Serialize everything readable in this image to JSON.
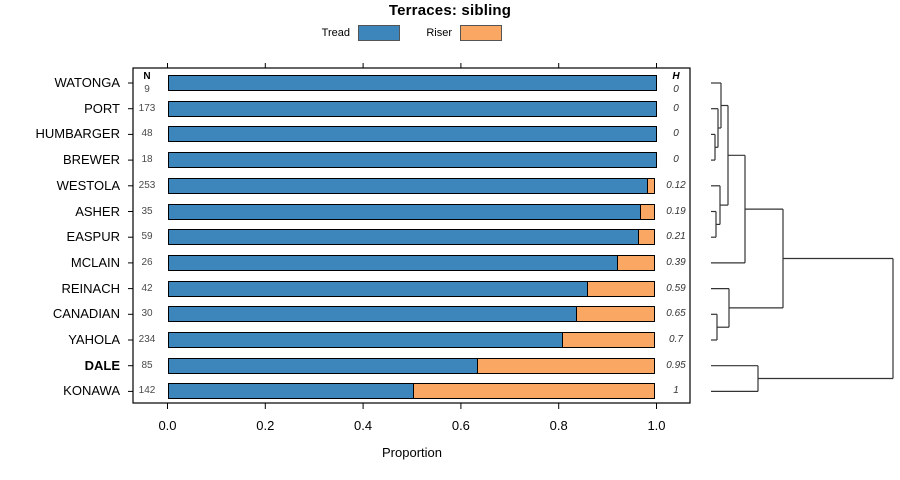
{
  "title": "Terraces: sibling",
  "legend": {
    "items": [
      {
        "label": "Tread",
        "color": "#3c86bc"
      },
      {
        "label": "Riser",
        "color": "#faa763"
      }
    ]
  },
  "table": {
    "n_header": "N",
    "h_header": "H"
  },
  "rows": [
    {
      "name": "WATONGA",
      "n": "9",
      "h": "0",
      "tread": 1.0,
      "bold": false
    },
    {
      "name": "PORT",
      "n": "173",
      "h": "0",
      "tread": 1.0,
      "bold": false
    },
    {
      "name": "HUMBARGER",
      "n": "48",
      "h": "0",
      "tread": 1.0,
      "bold": false
    },
    {
      "name": "BREWER",
      "n": "18",
      "h": "0",
      "tread": 1.0,
      "bold": false
    },
    {
      "name": "WESTOLA",
      "n": "253",
      "h": "0.12",
      "tread": 0.983,
      "bold": false
    },
    {
      "name": "ASHER",
      "n": "35",
      "h": "0.19",
      "tread": 0.97,
      "bold": false
    },
    {
      "name": "EASPUR",
      "n": "59",
      "h": "0.21",
      "tread": 0.965,
      "bold": false
    },
    {
      "name": "MCLAIN",
      "n": "26",
      "h": "0.39",
      "tread": 0.923,
      "bold": false
    },
    {
      "name": "REINACH",
      "n": "42",
      "h": "0.59",
      "tread": 0.86,
      "bold": false
    },
    {
      "name": "CANADIAN",
      "n": "30",
      "h": "0.65",
      "tread": 0.838,
      "bold": false
    },
    {
      "name": "YAHOLA",
      "n": "234",
      "h": "0.7",
      "tread": 0.81,
      "bold": false
    },
    {
      "name": "DALE",
      "n": "85",
      "h": "0.95",
      "tread": 0.635,
      "bold": true
    },
    {
      "name": "KONAWA",
      "n": "142",
      "h": "1",
      "tread": 0.505,
      "bold": false
    }
  ],
  "axis": {
    "ticks": [
      "0.0",
      "0.2",
      "0.4",
      "0.6",
      "0.8",
      "1.0"
    ],
    "label": "Proportion"
  },
  "colors": {
    "tread": "#3c86bc",
    "riser": "#faa763",
    "line": "#333333",
    "box": "#000000"
  },
  "dendrogram": {
    "segments": [
      [
        711,
        83,
        721,
        83
      ],
      [
        718,
        128,
        721,
        128
      ],
      [
        721,
        83,
        721,
        128
      ],
      [
        711,
        108.7,
        718,
        108.7
      ],
      [
        715,
        147.3,
        718,
        147.3
      ],
      [
        718,
        108.7,
        718,
        147.3
      ],
      [
        711,
        134.4,
        715,
        134.4
      ],
      [
        711,
        160.1,
        715,
        160.1
      ],
      [
        715,
        134.4,
        715,
        160.1
      ],
      [
        711,
        185.8,
        720,
        185.8
      ],
      [
        716,
        224.4,
        720,
        224.4
      ],
      [
        720,
        185.8,
        720,
        224.4
      ],
      [
        711,
        211.5,
        716,
        211.5
      ],
      [
        711,
        237.2,
        716,
        237.2
      ],
      [
        716,
        211.5,
        716,
        237.2
      ],
      [
        721,
        105.5,
        728,
        105.5
      ],
      [
        720,
        205.1,
        728,
        205.1
      ],
      [
        728,
        105.5,
        728,
        205.1
      ],
      [
        728,
        155.3,
        745,
        155.3
      ],
      [
        711,
        262.9,
        745,
        262.9
      ],
      [
        745,
        155.3,
        745,
        262.9
      ],
      [
        711,
        288.6,
        729,
        288.6
      ],
      [
        717,
        327.2,
        729,
        327.2
      ],
      [
        729,
        288.6,
        729,
        327.2
      ],
      [
        711,
        314.3,
        717,
        314.3
      ],
      [
        711,
        340,
        717,
        340
      ],
      [
        717,
        314.3,
        717,
        340
      ],
      [
        745,
        209.1,
        783,
        209.1
      ],
      [
        729,
        307.9,
        783,
        307.9
      ],
      [
        783,
        209.1,
        783,
        307.9
      ],
      [
        711,
        365.7,
        758,
        365.7
      ],
      [
        711,
        391.4,
        758,
        391.4
      ],
      [
        758,
        365.7,
        758,
        391.4
      ],
      [
        783,
        258.5,
        893,
        258.5
      ],
      [
        758,
        378.5,
        893,
        378.5
      ],
      [
        893,
        258.5,
        893,
        378.5
      ]
    ]
  },
  "chart_data": {
    "type": "bar",
    "orientation": "horizontal-stacked",
    "title": "Terraces: sibling",
    "xlabel": "Proportion",
    "xlim": [
      0,
      1
    ],
    "legend_position": "top",
    "dendrogram_position": "right",
    "categories": [
      "WATONGA",
      "PORT",
      "HUMBARGER",
      "BREWER",
      "WESTOLA",
      "ASHER",
      "EASPUR",
      "MCLAIN",
      "REINACH",
      "CANADIAN",
      "YAHOLA",
      "DALE",
      "KONAWA"
    ],
    "series": [
      {
        "name": "Tread",
        "color": "#3c86bc",
        "values": [
          1.0,
          1.0,
          1.0,
          1.0,
          0.983,
          0.97,
          0.965,
          0.923,
          0.86,
          0.838,
          0.81,
          0.635,
          0.505
        ]
      },
      {
        "name": "Riser",
        "color": "#faa763",
        "values": [
          0.0,
          0.0,
          0.0,
          0.0,
          0.017,
          0.03,
          0.035,
          0.077,
          0.14,
          0.162,
          0.19,
          0.365,
          0.495
        ]
      }
    ],
    "N": [
      9,
      173,
      48,
      18,
      253,
      35,
      59,
      26,
      42,
      30,
      234,
      85,
      142
    ],
    "H": [
      0,
      0,
      0,
      0,
      0.12,
      0.19,
      0.21,
      0.39,
      0.59,
      0.65,
      0.7,
      0.95,
      1
    ]
  }
}
